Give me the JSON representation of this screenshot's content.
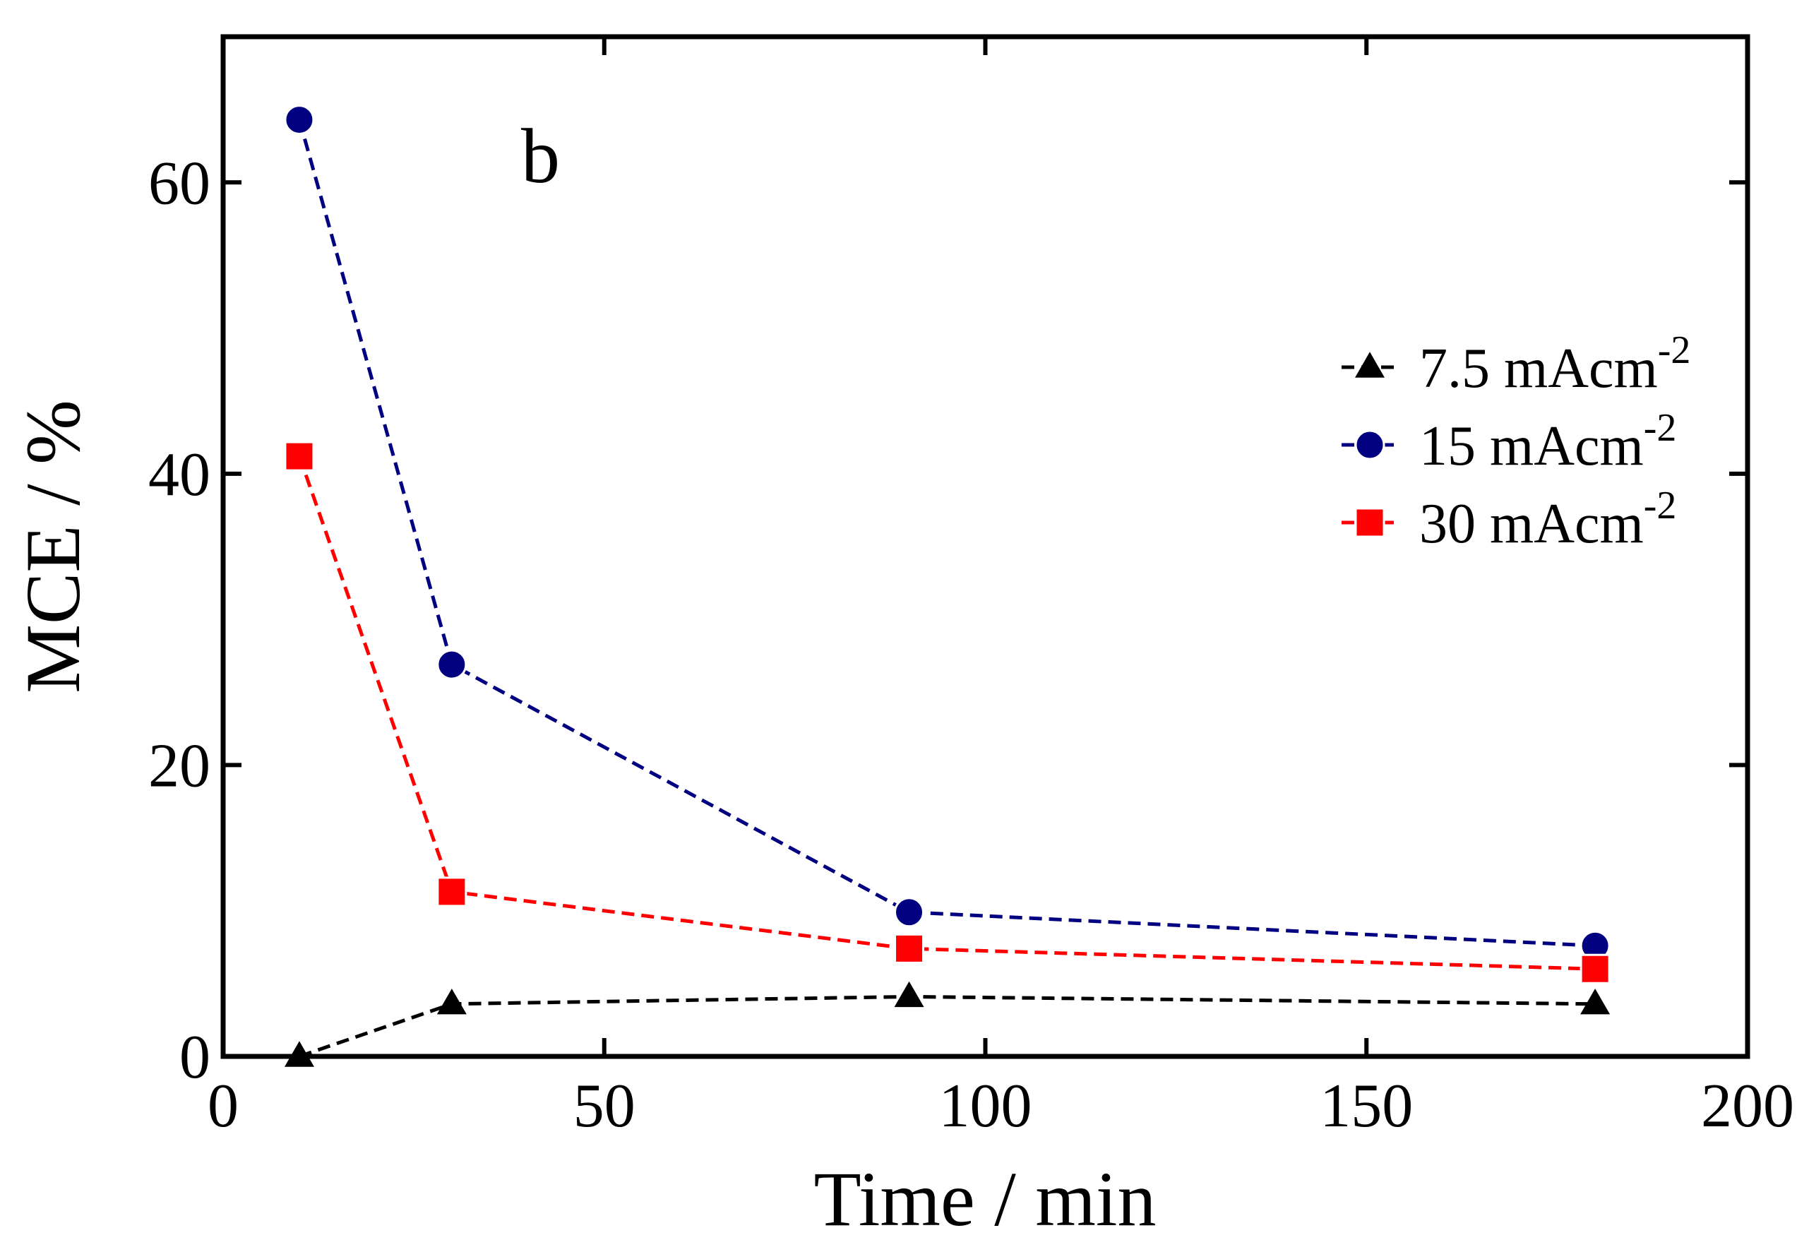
{
  "chart_data": {
    "type": "line",
    "panel_label": "b",
    "xlabel": "Time / min",
    "ylabel": "MCE / %",
    "xlim": [
      0,
      200
    ],
    "ylim": [
      0,
      70
    ],
    "xticks": [
      0,
      50,
      100,
      150,
      200
    ],
    "yticks": [
      0,
      20,
      40,
      60
    ],
    "x": [
      10,
      30,
      90,
      180
    ],
    "legend_position": "right",
    "series": [
      {
        "name": "7.5 mAcm",
        "unit_sup": "-2",
        "values": [
          0,
          3.6,
          4.1,
          3.6
        ],
        "color": "#000000",
        "marker": "triangle",
        "line_color": "#000000"
      },
      {
        "name": "15 mAcm",
        "unit_sup": "-2",
        "values": [
          64.3,
          26.9,
          9.9,
          7.6
        ],
        "color": "#000080",
        "marker": "circle",
        "line_color": "#000080"
      },
      {
        "name": "30 mAcm",
        "unit_sup": "-2",
        "values": [
          41.2,
          11.3,
          7.4,
          6.0
        ],
        "color": "#ff0000",
        "marker": "square",
        "line_color": "#ff0000"
      }
    ]
  }
}
